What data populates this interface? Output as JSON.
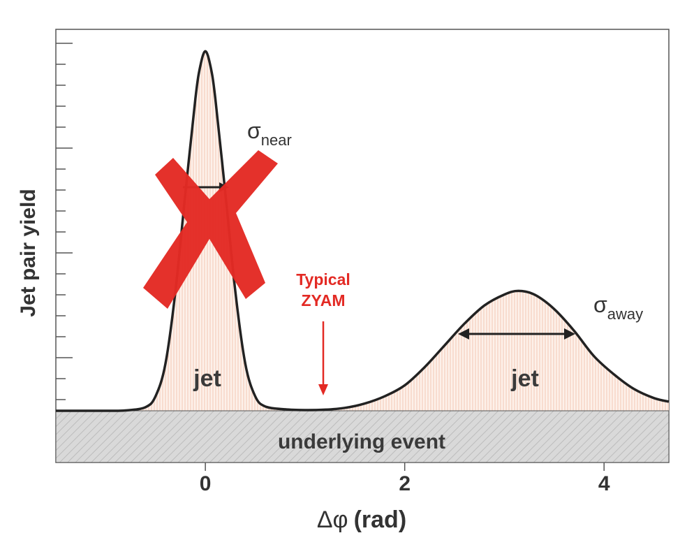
{
  "chart_data": {
    "type": "area",
    "xlabel_symbol": "Δφ",
    "xlabel_unit": "(rad)",
    "ylabel": "Jet pair yield",
    "xlim": [
      -1.5,
      4.65
    ],
    "x_ticks": [
      0,
      2,
      4
    ],
    "ylim": [
      0,
      1.0
    ],
    "baseline": 0.0,
    "series": [
      {
        "x": [
          -1.5,
          -1.0,
          -0.8,
          -0.6,
          -0.5,
          -0.4,
          -0.3,
          -0.2,
          -0.1,
          -0.05,
          0.0,
          0.05,
          0.1,
          0.2,
          0.3,
          0.4,
          0.5,
          0.6,
          0.8,
          1.0,
          1.2,
          1.4,
          1.6,
          1.8,
          2.0,
          2.2,
          2.4,
          2.6,
          2.8,
          3.0,
          3.14,
          3.3,
          3.5,
          3.7,
          3.9,
          4.1,
          4.3,
          4.5,
          4.65
        ],
        "values": [
          0.0,
          0.0,
          0.001,
          0.01,
          0.04,
          0.13,
          0.33,
          0.6,
          0.86,
          0.95,
          0.99,
          0.95,
          0.86,
          0.6,
          0.33,
          0.13,
          0.04,
          0.012,
          0.004,
          0.002,
          0.003,
          0.008,
          0.02,
          0.04,
          0.07,
          0.12,
          0.18,
          0.24,
          0.29,
          0.32,
          0.33,
          0.32,
          0.28,
          0.22,
          0.15,
          0.1,
          0.06,
          0.035,
          0.025
        ]
      }
    ],
    "annotations": {
      "near_peak_label": "jet",
      "away_peak_label": "jet",
      "sigma_symbol": "σ",
      "sigma_near_sub": "near",
      "sigma_away_sub": "away",
      "underlying_event_label": "underlying event",
      "zyam_line1": "Typical",
      "zyam_line2": "ZYAM"
    },
    "colors": {
      "curve": "#222222",
      "fill": "#f4c8b4",
      "zyam": "#e32a24",
      "cross": "#e32a24",
      "underlying_fill": "#d2d2d2"
    }
  }
}
